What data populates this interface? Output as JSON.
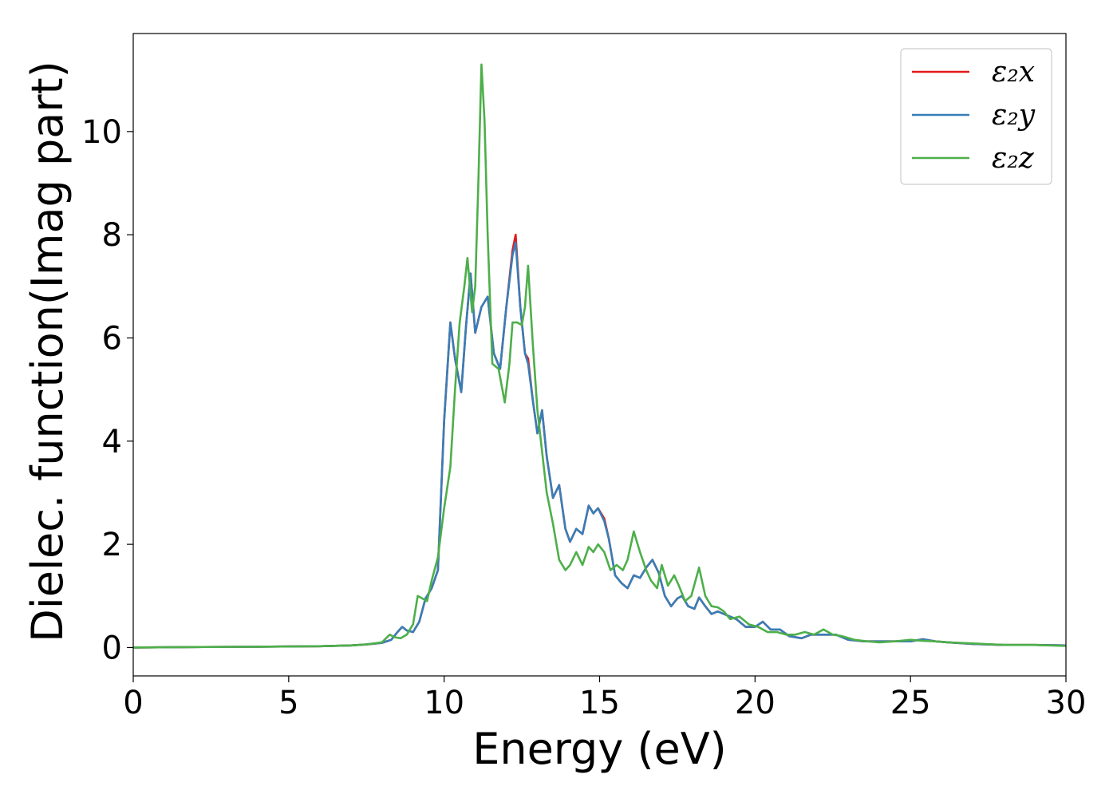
{
  "chart_data": {
    "type": "line",
    "title": "",
    "xlabel": "Energy (eV)",
    "ylabel": "Dielec. function(Imag part)",
    "xlim": [
      0,
      30
    ],
    "ylim": [
      -0.55,
      11.9
    ],
    "xticks": [
      0,
      5,
      10,
      15,
      20,
      25,
      30
    ],
    "yticks": [
      0,
      2,
      4,
      6,
      8,
      10
    ],
    "grid": false,
    "legend_position": "top-right",
    "series": [
      {
        "name": "ε₂x",
        "color": "#e41a1c",
        "points": [
          [
            0,
            0.0
          ],
          [
            2,
            0.01
          ],
          [
            4,
            0.015
          ],
          [
            6,
            0.025
          ],
          [
            7,
            0.04
          ],
          [
            7.5,
            0.06
          ],
          [
            8,
            0.09
          ],
          [
            8.3,
            0.15
          ],
          [
            8.5,
            0.3
          ],
          [
            8.65,
            0.4
          ],
          [
            8.8,
            0.33
          ],
          [
            9.0,
            0.3
          ],
          [
            9.2,
            0.5
          ],
          [
            9.4,
            0.95
          ],
          [
            9.6,
            1.15
          ],
          [
            9.8,
            1.5
          ],
          [
            10.0,
            4.4
          ],
          [
            10.2,
            6.3
          ],
          [
            10.35,
            5.6
          ],
          [
            10.55,
            4.95
          ],
          [
            10.7,
            6.2
          ],
          [
            10.85,
            7.25
          ],
          [
            11.0,
            6.1
          ],
          [
            11.2,
            6.6
          ],
          [
            11.4,
            6.8
          ],
          [
            11.6,
            5.7
          ],
          [
            11.8,
            5.4
          ],
          [
            12.0,
            6.6
          ],
          [
            12.2,
            7.7
          ],
          [
            12.3,
            8.0
          ],
          [
            12.45,
            6.6
          ],
          [
            12.6,
            5.7
          ],
          [
            12.7,
            5.6
          ],
          [
            12.85,
            4.8
          ],
          [
            13.0,
            4.15
          ],
          [
            13.15,
            4.6
          ],
          [
            13.3,
            3.7
          ],
          [
            13.5,
            2.9
          ],
          [
            13.7,
            3.15
          ],
          [
            13.9,
            2.3
          ],
          [
            14.05,
            2.05
          ],
          [
            14.25,
            2.3
          ],
          [
            14.45,
            2.2
          ],
          [
            14.65,
            2.75
          ],
          [
            14.8,
            2.6
          ],
          [
            14.95,
            2.7
          ],
          [
            15.15,
            2.5
          ],
          [
            15.3,
            2.1
          ],
          [
            15.5,
            1.4
          ],
          [
            15.7,
            1.25
          ],
          [
            15.9,
            1.15
          ],
          [
            16.1,
            1.4
          ],
          [
            16.3,
            1.35
          ],
          [
            16.5,
            1.55
          ],
          [
            16.7,
            1.7
          ],
          [
            16.9,
            1.45
          ],
          [
            17.1,
            1.0
          ],
          [
            17.3,
            0.8
          ],
          [
            17.5,
            0.95
          ],
          [
            17.65,
            1.0
          ],
          [
            17.85,
            0.8
          ],
          [
            18.05,
            0.75
          ],
          [
            18.2,
            0.97
          ],
          [
            18.4,
            0.8
          ],
          [
            18.6,
            0.65
          ],
          [
            18.8,
            0.7
          ],
          [
            19.0,
            0.65
          ],
          [
            19.2,
            0.6
          ],
          [
            19.4,
            0.55
          ],
          [
            19.7,
            0.4
          ],
          [
            20.0,
            0.4
          ],
          [
            20.25,
            0.5
          ],
          [
            20.5,
            0.35
          ],
          [
            20.8,
            0.35
          ],
          [
            21.1,
            0.22
          ],
          [
            21.5,
            0.18
          ],
          [
            21.8,
            0.25
          ],
          [
            22.2,
            0.25
          ],
          [
            22.6,
            0.25
          ],
          [
            23.0,
            0.15
          ],
          [
            23.5,
            0.12
          ],
          [
            24.0,
            0.12
          ],
          [
            24.5,
            0.12
          ],
          [
            25.0,
            0.12
          ],
          [
            25.4,
            0.16
          ],
          [
            25.8,
            0.12
          ],
          [
            26.2,
            0.1
          ],
          [
            27.0,
            0.07
          ],
          [
            28.0,
            0.05
          ],
          [
            29.0,
            0.05
          ],
          [
            30.0,
            0.04
          ]
        ]
      },
      {
        "name": "ε₂y",
        "color": "#377eb8",
        "points": [
          [
            0,
            0.0
          ],
          [
            2,
            0.01
          ],
          [
            4,
            0.015
          ],
          [
            6,
            0.025
          ],
          [
            7,
            0.04
          ],
          [
            7.5,
            0.06
          ],
          [
            8,
            0.09
          ],
          [
            8.3,
            0.15
          ],
          [
            8.5,
            0.3
          ],
          [
            8.65,
            0.4
          ],
          [
            8.8,
            0.33
          ],
          [
            9.0,
            0.3
          ],
          [
            9.2,
            0.5
          ],
          [
            9.4,
            0.95
          ],
          [
            9.6,
            1.15
          ],
          [
            9.8,
            1.5
          ],
          [
            10.0,
            4.4
          ],
          [
            10.2,
            6.3
          ],
          [
            10.35,
            5.6
          ],
          [
            10.55,
            4.95
          ],
          [
            10.7,
            6.2
          ],
          [
            10.85,
            7.25
          ],
          [
            11.0,
            6.1
          ],
          [
            11.2,
            6.6
          ],
          [
            11.4,
            6.8
          ],
          [
            11.6,
            5.7
          ],
          [
            11.8,
            5.4
          ],
          [
            12.0,
            6.6
          ],
          [
            12.2,
            7.6
          ],
          [
            12.3,
            7.85
          ],
          [
            12.45,
            6.6
          ],
          [
            12.6,
            5.7
          ],
          [
            12.7,
            5.5
          ],
          [
            12.85,
            4.8
          ],
          [
            13.0,
            4.15
          ],
          [
            13.15,
            4.6
          ],
          [
            13.3,
            3.7
          ],
          [
            13.5,
            2.9
          ],
          [
            13.7,
            3.15
          ],
          [
            13.9,
            2.3
          ],
          [
            14.05,
            2.05
          ],
          [
            14.25,
            2.3
          ],
          [
            14.45,
            2.2
          ],
          [
            14.65,
            2.75
          ],
          [
            14.8,
            2.6
          ],
          [
            14.95,
            2.7
          ],
          [
            15.15,
            2.45
          ],
          [
            15.3,
            2.1
          ],
          [
            15.5,
            1.4
          ],
          [
            15.7,
            1.25
          ],
          [
            15.9,
            1.15
          ],
          [
            16.1,
            1.4
          ],
          [
            16.3,
            1.35
          ],
          [
            16.5,
            1.55
          ],
          [
            16.7,
            1.7
          ],
          [
            16.9,
            1.45
          ],
          [
            17.1,
            1.0
          ],
          [
            17.3,
            0.8
          ],
          [
            17.5,
            0.95
          ],
          [
            17.65,
            1.0
          ],
          [
            17.85,
            0.8
          ],
          [
            18.05,
            0.75
          ],
          [
            18.2,
            0.97
          ],
          [
            18.4,
            0.8
          ],
          [
            18.6,
            0.65
          ],
          [
            18.8,
            0.7
          ],
          [
            19.0,
            0.65
          ],
          [
            19.2,
            0.6
          ],
          [
            19.4,
            0.55
          ],
          [
            19.7,
            0.4
          ],
          [
            20.0,
            0.4
          ],
          [
            20.25,
            0.5
          ],
          [
            20.5,
            0.35
          ],
          [
            20.8,
            0.35
          ],
          [
            21.1,
            0.22
          ],
          [
            21.5,
            0.18
          ],
          [
            21.8,
            0.25
          ],
          [
            22.2,
            0.25
          ],
          [
            22.6,
            0.25
          ],
          [
            23.0,
            0.15
          ],
          [
            23.5,
            0.12
          ],
          [
            24.0,
            0.12
          ],
          [
            24.5,
            0.12
          ],
          [
            25.0,
            0.12
          ],
          [
            25.4,
            0.16
          ],
          [
            25.8,
            0.12
          ],
          [
            26.2,
            0.1
          ],
          [
            27.0,
            0.07
          ],
          [
            28.0,
            0.05
          ],
          [
            29.0,
            0.05
          ],
          [
            30.0,
            0.04
          ]
        ]
      },
      {
        "name": "ε₂z",
        "color": "#4daf4a",
        "points": [
          [
            0,
            0.0
          ],
          [
            2,
            0.01
          ],
          [
            4,
            0.015
          ],
          [
            6,
            0.025
          ],
          [
            7,
            0.04
          ],
          [
            7.5,
            0.06
          ],
          [
            8,
            0.1
          ],
          [
            8.25,
            0.25
          ],
          [
            8.4,
            0.2
          ],
          [
            8.6,
            0.18
          ],
          [
            8.8,
            0.25
          ],
          [
            9.0,
            0.45
          ],
          [
            9.15,
            1.0
          ],
          [
            9.3,
            0.95
          ],
          [
            9.45,
            0.9
          ],
          [
            9.6,
            1.3
          ],
          [
            9.8,
            1.75
          ],
          [
            10.0,
            2.7
          ],
          [
            10.2,
            3.5
          ],
          [
            10.35,
            5.0
          ],
          [
            10.5,
            6.3
          ],
          [
            10.65,
            7.0
          ],
          [
            10.75,
            7.55
          ],
          [
            10.9,
            6.5
          ],
          [
            11.0,
            7.0
          ],
          [
            11.1,
            9.0
          ],
          [
            11.2,
            11.3
          ],
          [
            11.3,
            10.2
          ],
          [
            11.4,
            8.0
          ],
          [
            11.55,
            5.5
          ],
          [
            11.75,
            5.4
          ],
          [
            11.95,
            4.75
          ],
          [
            12.1,
            5.5
          ],
          [
            12.2,
            6.3
          ],
          [
            12.35,
            6.3
          ],
          [
            12.5,
            6.25
          ],
          [
            12.6,
            6.6
          ],
          [
            12.7,
            7.4
          ],
          [
            12.85,
            5.9
          ],
          [
            13.0,
            4.6
          ],
          [
            13.15,
            3.8
          ],
          [
            13.3,
            3.0
          ],
          [
            13.5,
            2.4
          ],
          [
            13.7,
            1.7
          ],
          [
            13.9,
            1.5
          ],
          [
            14.05,
            1.6
          ],
          [
            14.25,
            1.85
          ],
          [
            14.45,
            1.6
          ],
          [
            14.65,
            1.95
          ],
          [
            14.8,
            1.85
          ],
          [
            14.95,
            2.0
          ],
          [
            15.15,
            1.85
          ],
          [
            15.35,
            1.5
          ],
          [
            15.55,
            1.6
          ],
          [
            15.75,
            1.5
          ],
          [
            15.9,
            1.7
          ],
          [
            16.1,
            2.25
          ],
          [
            16.3,
            1.85
          ],
          [
            16.5,
            1.5
          ],
          [
            16.65,
            1.3
          ],
          [
            16.85,
            1.15
          ],
          [
            17.0,
            1.6
          ],
          [
            17.2,
            1.2
          ],
          [
            17.4,
            1.4
          ],
          [
            17.55,
            1.2
          ],
          [
            17.75,
            0.9
          ],
          [
            17.95,
            1.0
          ],
          [
            18.2,
            1.55
          ],
          [
            18.4,
            1.0
          ],
          [
            18.6,
            0.8
          ],
          [
            18.8,
            0.78
          ],
          [
            19.0,
            0.7
          ],
          [
            19.2,
            0.55
          ],
          [
            19.5,
            0.6
          ],
          [
            19.8,
            0.45
          ],
          [
            20.1,
            0.4
          ],
          [
            20.4,
            0.3
          ],
          [
            20.7,
            0.3
          ],
          [
            21.0,
            0.25
          ],
          [
            21.3,
            0.25
          ],
          [
            21.6,
            0.3
          ],
          [
            21.9,
            0.25
          ],
          [
            22.2,
            0.35
          ],
          [
            22.5,
            0.25
          ],
          [
            22.8,
            0.22
          ],
          [
            23.2,
            0.15
          ],
          [
            23.6,
            0.12
          ],
          [
            24.0,
            0.1
          ],
          [
            24.5,
            0.12
          ],
          [
            25.0,
            0.15
          ],
          [
            25.4,
            0.13
          ],
          [
            25.8,
            0.12
          ],
          [
            26.2,
            0.1
          ],
          [
            27.0,
            0.08
          ],
          [
            28.0,
            0.05
          ],
          [
            29.0,
            0.05
          ],
          [
            30.0,
            0.03
          ]
        ]
      }
    ]
  }
}
